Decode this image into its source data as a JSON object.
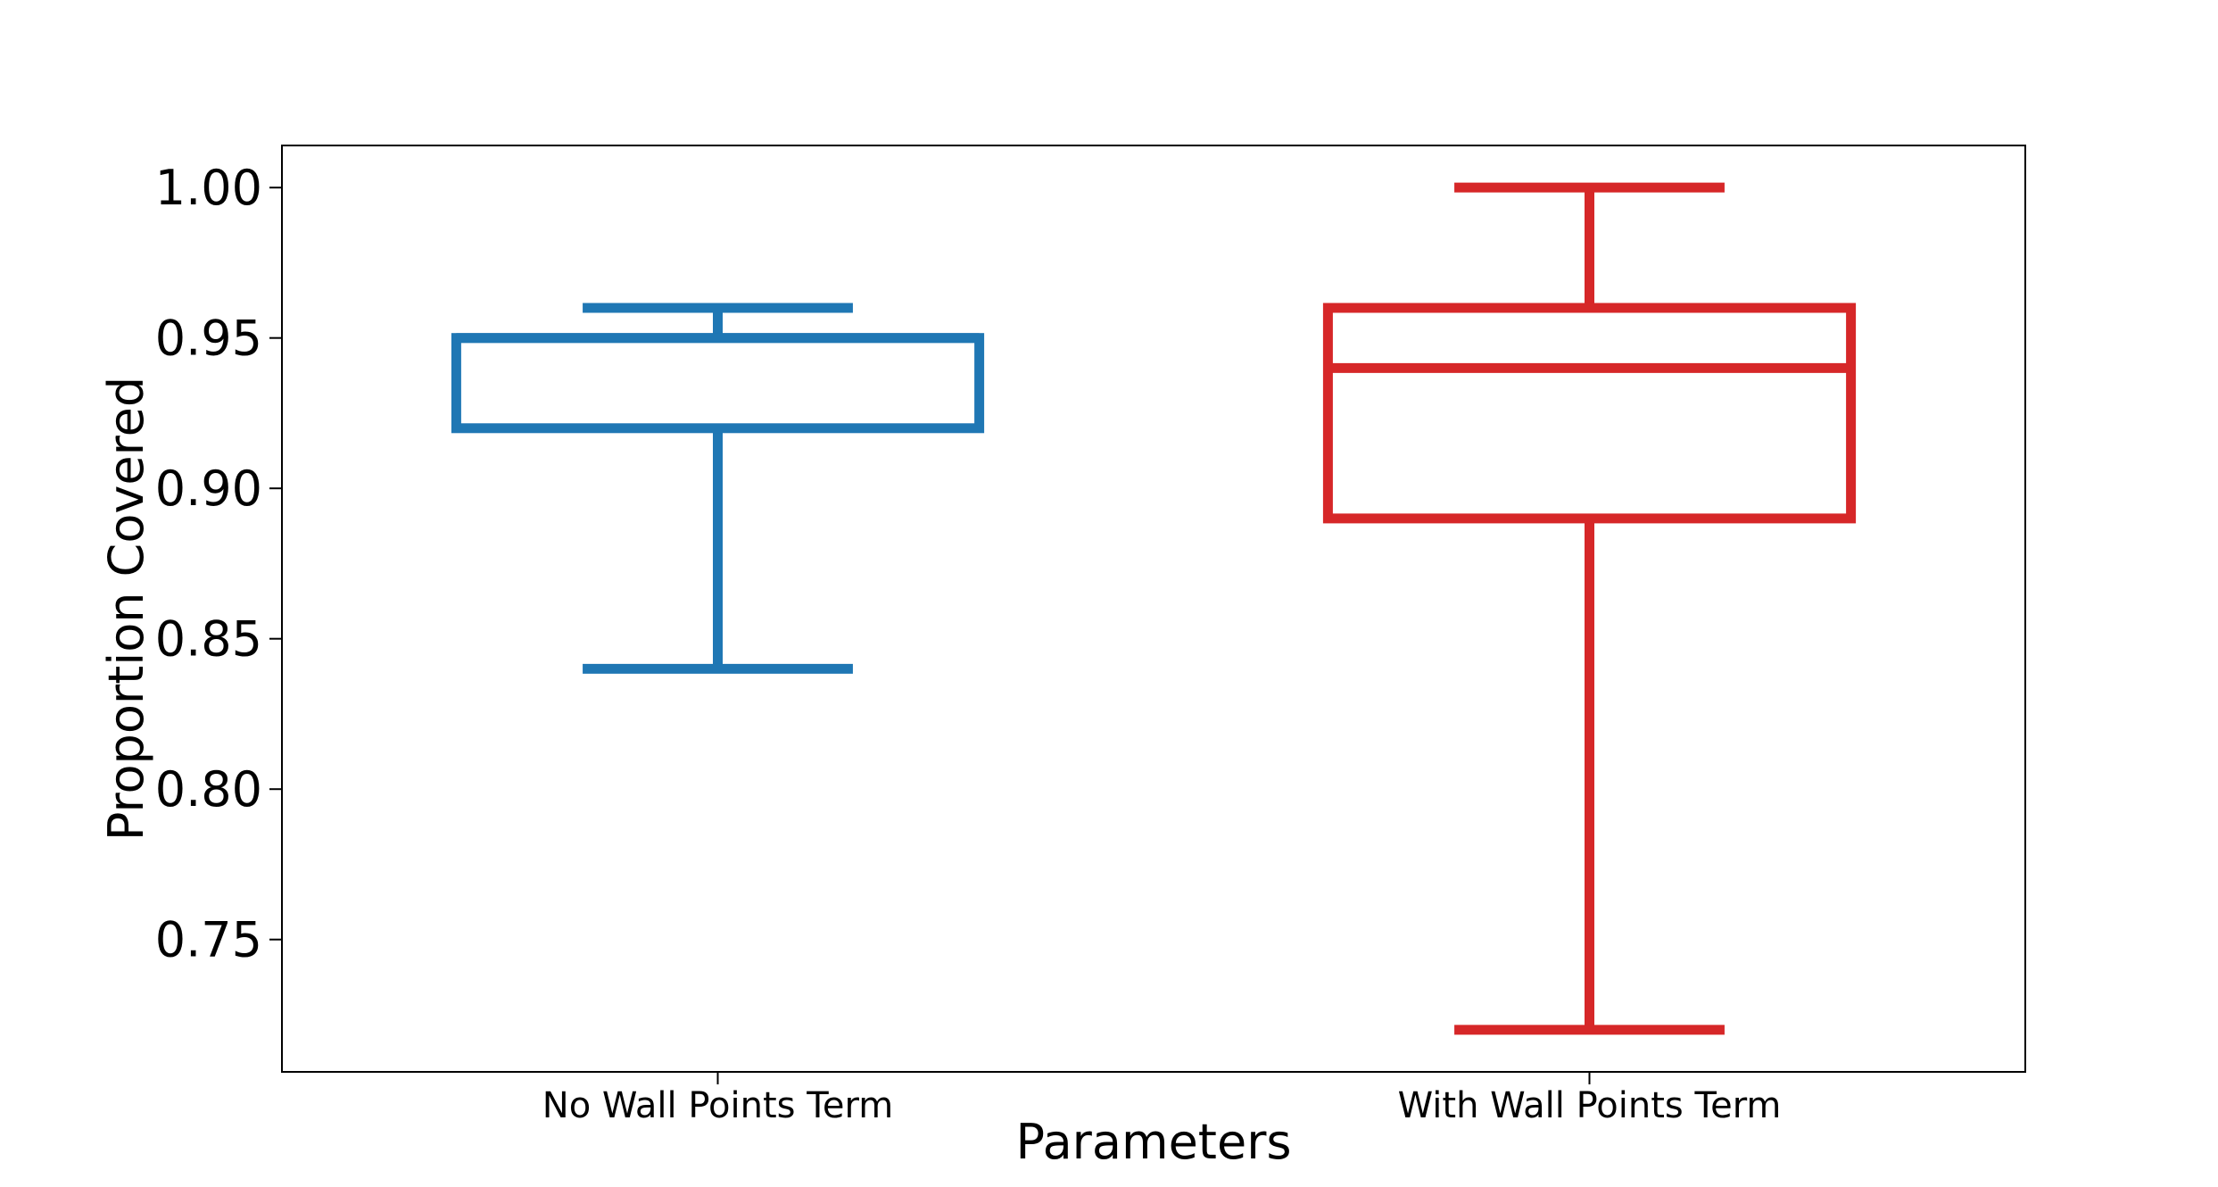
{
  "chart_data": {
    "type": "box",
    "title": "",
    "xlabel": "Parameters",
    "ylabel": "Proportion Covered",
    "ylim": [
      0.706,
      1.014
    ],
    "yticks": [
      0.75,
      0.8,
      0.85,
      0.9,
      0.95,
      1.0
    ],
    "ytick_labels": [
      "0.75",
      "0.80",
      "0.85",
      "0.90",
      "0.95",
      "1.00"
    ],
    "grid": false,
    "categories": [
      "No Wall Points Term",
      "With Wall Points Term"
    ],
    "series": [
      {
        "category": "No Wall Points Term",
        "color": "#1f77b4",
        "whisker_low": 0.84,
        "q1": 0.92,
        "median": 0.95,
        "q3": 0.95,
        "whisker_high": 0.96
      },
      {
        "category": "With Wall Points Term",
        "color": "#d62728",
        "whisker_low": 0.72,
        "q1": 0.89,
        "median": 0.94,
        "q3": 0.96,
        "whisker_high": 1.0
      }
    ]
  }
}
